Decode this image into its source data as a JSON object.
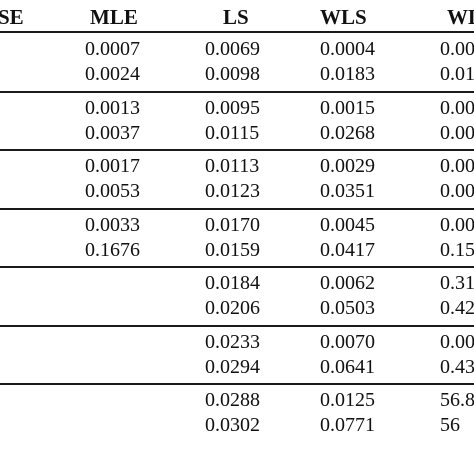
{
  "table": {
    "headers": [
      "SE",
      "MLE",
      "LS",
      "WLS",
      "WL"
    ],
    "groups": [
      {
        "rows": [
          [
            "0.0007",
            "0.0069",
            "0.0004",
            "0.00"
          ],
          [
            "0.0024",
            "0.0098",
            "0.0183",
            "0.01"
          ]
        ]
      },
      {
        "rows": [
          [
            "0.0013",
            "0.0095",
            "0.0015",
            "0.00"
          ],
          [
            "0.0037",
            "0.0115",
            "0.0268",
            "0.00"
          ]
        ]
      },
      {
        "rows": [
          [
            "0.0017",
            "0.0113",
            "0.0029",
            "0.00"
          ],
          [
            "0.0053",
            "0.0123",
            "0.0351",
            "0.00"
          ]
        ]
      },
      {
        "rows": [
          [
            "0.0033",
            "0.0170",
            "0.0045",
            "0.00"
          ],
          [
            "0.1676",
            "0.0159",
            "0.0417",
            "0.15"
          ]
        ]
      },
      {
        "rows": [
          [
            "",
            "0.0184",
            "0.0062",
            "0.31"
          ],
          [
            "",
            "0.0206",
            "0.0503",
            "0.42"
          ]
        ]
      },
      {
        "rows": [
          [
            "",
            "0.0233",
            "0.0070",
            "0.00"
          ],
          [
            "",
            "0.0294",
            "0.0641",
            "0.43"
          ]
        ]
      },
      {
        "rows": [
          [
            "",
            "0.0288",
            "0.0125",
            "56.8"
          ],
          [
            "",
            "0.0302",
            "0.0771",
            "56"
          ]
        ]
      }
    ]
  }
}
